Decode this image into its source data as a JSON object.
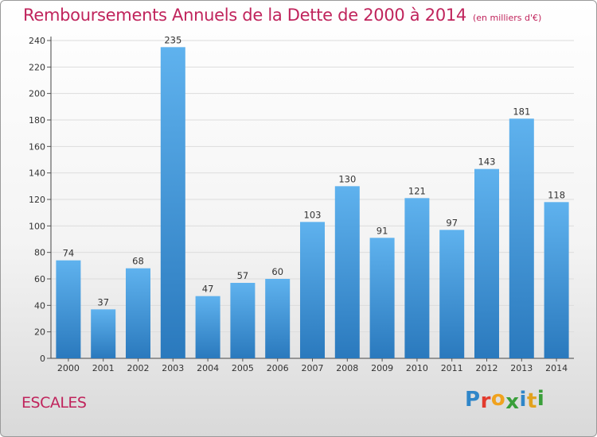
{
  "chart_data": {
    "type": "bar",
    "title": "Remboursements Annuels de la Dette de 2000 à 2014",
    "subtitle": "(en milliers d'€)",
    "categories": [
      "2000",
      "2001",
      "2002",
      "2003",
      "2004",
      "2005",
      "2006",
      "2007",
      "2008",
      "2009",
      "2010",
      "2011",
      "2012",
      "2013",
      "2014"
    ],
    "values": [
      74,
      37,
      68,
      235,
      47,
      57,
      60,
      103,
      130,
      91,
      121,
      97,
      143,
      181,
      118
    ],
    "value_labels": [
      "74",
      "37",
      "68",
      "235",
      "47",
      "57",
      "60",
      "103",
      "130",
      "91",
      "121",
      "97",
      "143",
      "181",
      "118"
    ],
    "yticks": [
      "0",
      "20",
      "40",
      "60",
      "80",
      "100",
      "120",
      "140",
      "160",
      "180",
      "200",
      "220",
      "240"
    ],
    "ylim": [
      0,
      240
    ],
    "xlabel": "",
    "ylabel": "",
    "grid": true,
    "colors": {
      "title": "#c0245c",
      "bar_top": "#5fb2ee",
      "bar_bottom": "#2a79bd",
      "grid": "#dcdcdc"
    }
  },
  "footer": {
    "town": "ESCALES",
    "brand": "Proxiti",
    "brand_colors": [
      "#2f86c9",
      "#e23b2e",
      "#f0a21e",
      "#3a9f3a",
      "#2f86c9",
      "#e2a21e",
      "#3a9f3a"
    ]
  }
}
